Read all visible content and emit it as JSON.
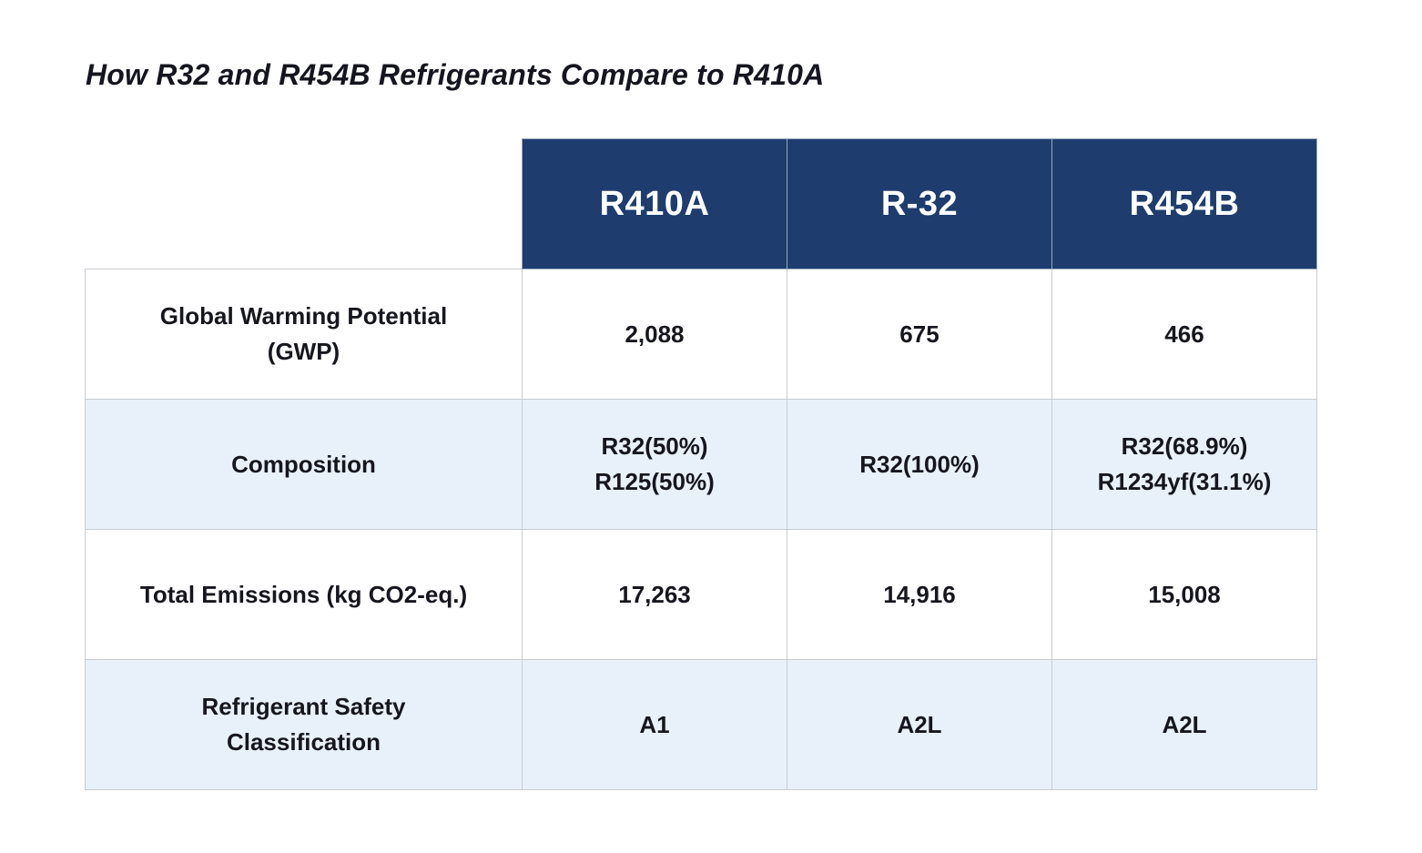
{
  "chart_data": {
    "type": "table",
    "title": "How R32 and R454B Refrigerants Compare to R410A",
    "columns": [
      "R410A",
      "R-32",
      "R454B"
    ],
    "rows": [
      {
        "label": "Global Warming Potential\n(GWP)",
        "values": [
          "2,088",
          "675",
          "466"
        ]
      },
      {
        "label": "Composition",
        "values": [
          "R32(50%)\nR125(50%)",
          "R32(100%)",
          "R32(68.9%)\nR1234yf(31.1%)"
        ]
      },
      {
        "label": "Total Emissions (kg CO2-eq.)",
        "values": [
          "17,263",
          "14,916",
          "15,008"
        ]
      },
      {
        "label": "Refrigerant Safety\nClassification",
        "values": [
          "A1",
          "A2L",
          "A2L"
        ]
      }
    ],
    "layout": {
      "legend": "none",
      "grid": "full cell borders",
      "header_row": "dark blue, top of data columns only",
      "zebra_rows": "white / light blue alternating"
    },
    "colors": {
      "header_bg": "#1E3D6E",
      "header_text": "#FFFFFF",
      "row_even_bg": "#FFFFFF",
      "row_odd_bg": "#E8F1F9",
      "border": "#C9CCD1",
      "text": "#16161E"
    }
  }
}
